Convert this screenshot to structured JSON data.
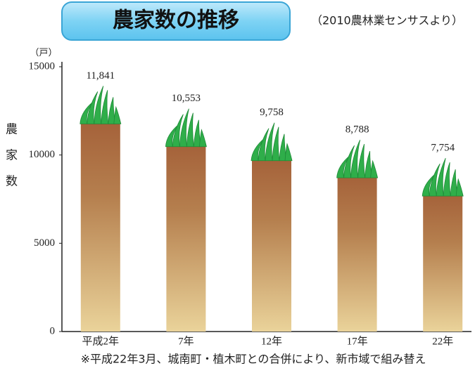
{
  "chart_data": {
    "type": "bar",
    "title": "農家数の推移",
    "subtitle": "（2010農林業センサスより）",
    "y_unit": "（戸）",
    "y_label": "農家数",
    "footnote": "※平成22年3月、城南町・植木町との合併により、新市域で組み替え",
    "categories": [
      "平成2年",
      "7年",
      "12年",
      "17年",
      "22年"
    ],
    "values": [
      11841,
      10553,
      9758,
      8788,
      7754
    ],
    "value_labels": [
      "11,841",
      "10,553",
      "9,758",
      "8,788",
      "7,754"
    ],
    "ylim": [
      0,
      15000
    ],
    "yticks": [
      0,
      5000,
      10000,
      15000
    ],
    "grid": false,
    "color": "#a9683e"
  }
}
